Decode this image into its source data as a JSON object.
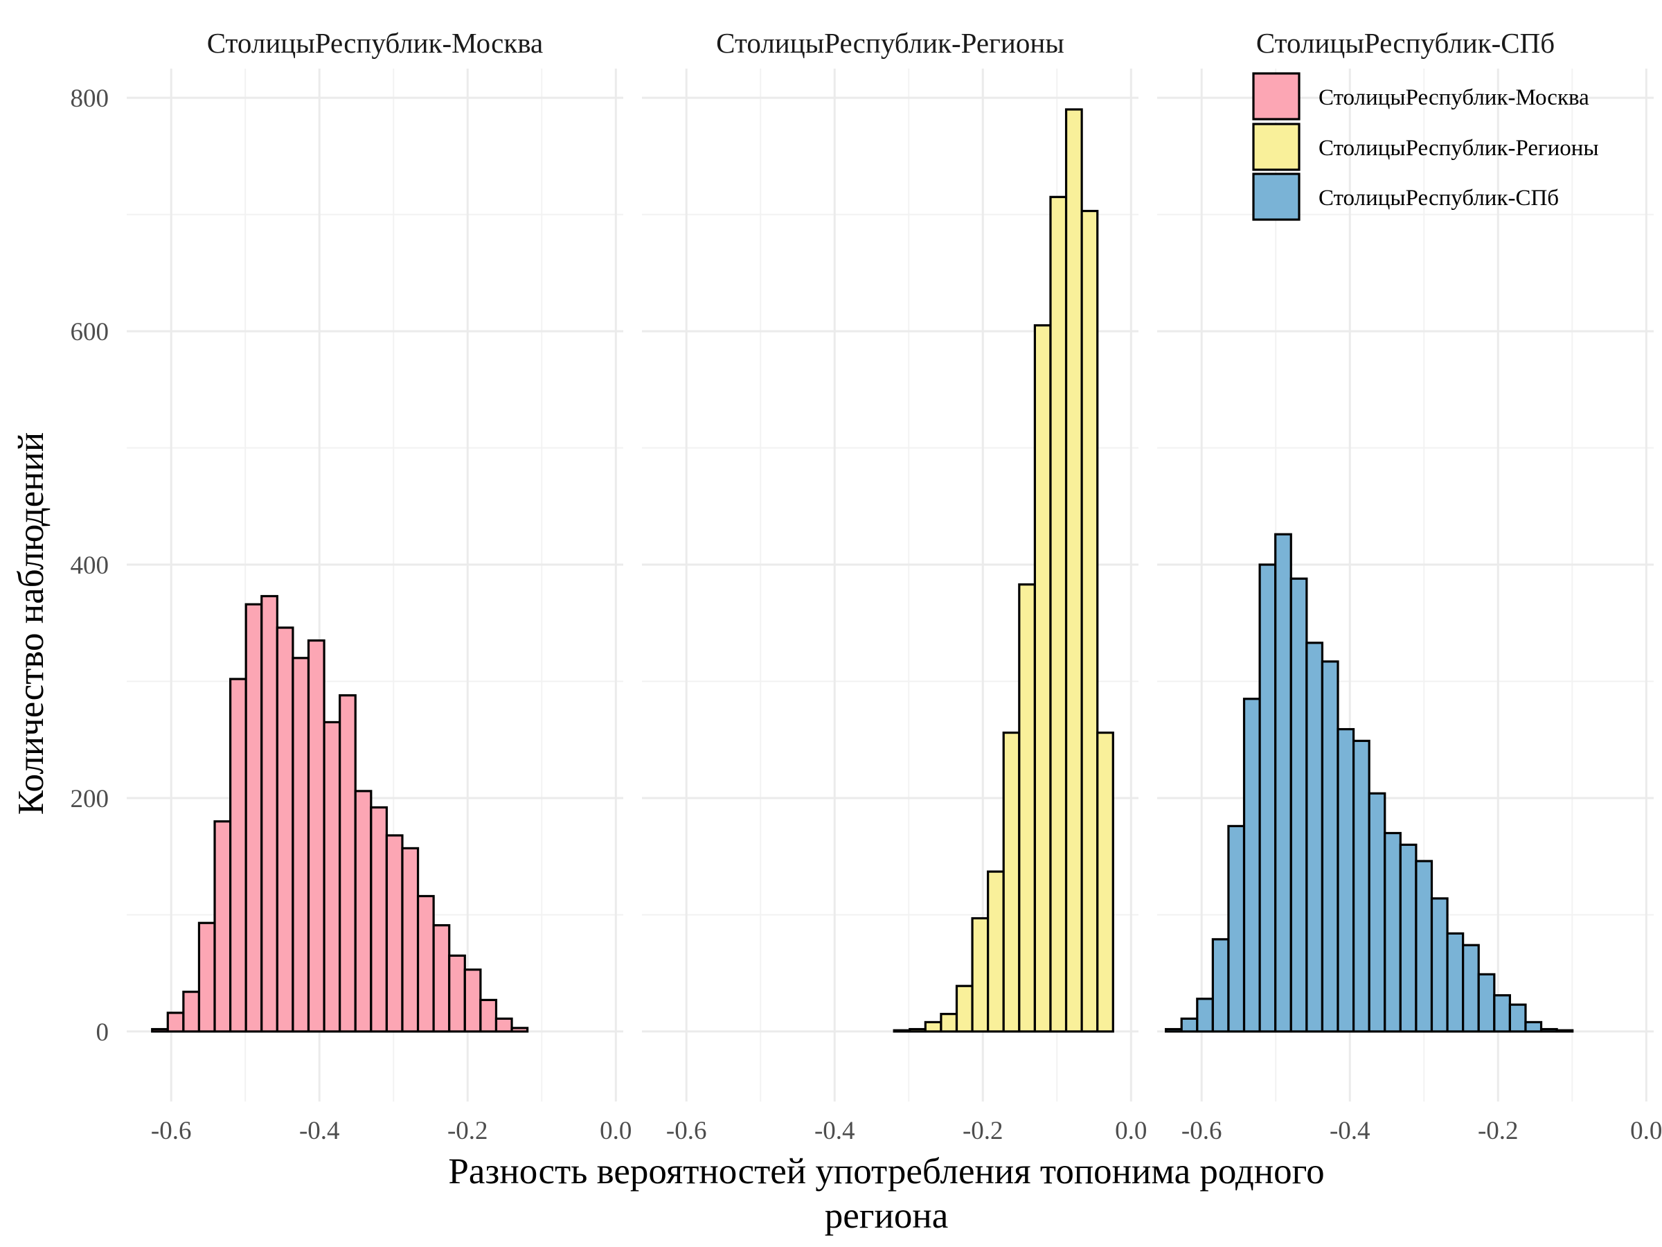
{
  "chart_data": {
    "type": "bar",
    "xlabel_lines": [
      "Разность вероятностей употребления топонима родного",
      "региона"
    ],
    "ylabel": "Количество наблюдений",
    "xlim": [
      -0.66,
      0.01
    ],
    "ylim": [
      -60,
      825
    ],
    "x_ticks": [
      -0.6,
      -0.4,
      -0.2,
      0.0
    ],
    "x_tick_labels": [
      "-0.6",
      "-0.4",
      "-0.2",
      "0.0"
    ],
    "y_ticks": [
      0,
      200,
      400,
      600,
      800
    ],
    "y_tick_labels": [
      "0",
      "200",
      "400",
      "600",
      "800"
    ],
    "grid": true,
    "legend_position": "top-right",
    "bin_width": 0.0211,
    "facets": [
      {
        "title": "СтолицыРеспублик-Москва",
        "color": "#FCA6B4",
        "bin_start": -0.6468,
        "values": [
          0,
          2,
          16,
          34,
          93,
          180,
          302,
          366,
          373,
          346,
          320,
          335,
          265,
          288,
          206,
          192,
          168,
          157,
          116,
          91,
          65,
          53,
          27,
          11,
          3,
          0,
          0,
          0,
          0,
          0
        ]
      },
      {
        "title": "СтолицыРеспублик-Регионы",
        "color": "#F9F09A",
        "bin_start": -0.6573,
        "values": [
          0,
          0,
          0,
          0,
          0,
          0,
          0,
          0,
          0,
          0,
          0,
          0,
          0,
          0,
          0,
          0,
          1,
          2,
          8,
          15,
          39,
          97,
          137,
          256,
          383,
          605,
          715,
          790,
          703,
          256
        ]
      },
      {
        "title": "СтолицыРеспублик-СПб",
        "color": "#7AB3D6",
        "bin_start": -0.6482,
        "values": [
          2,
          11,
          28,
          79,
          176,
          285,
          400,
          426,
          388,
          333,
          317,
          259,
          249,
          204,
          170,
          160,
          146,
          114,
          84,
          74,
          49,
          31,
          23,
          8,
          2,
          1,
          0,
          0,
          0,
          0
        ]
      }
    ]
  },
  "legend": {
    "items": [
      {
        "label": "СтолицыРеспублик-Москва",
        "color": "#FCA6B4"
      },
      {
        "label": "СтолицыРеспублик-Регионы",
        "color": "#F9F09A"
      },
      {
        "label": "СтолицыРеспублик-СПб",
        "color": "#7AB3D6"
      }
    ]
  }
}
